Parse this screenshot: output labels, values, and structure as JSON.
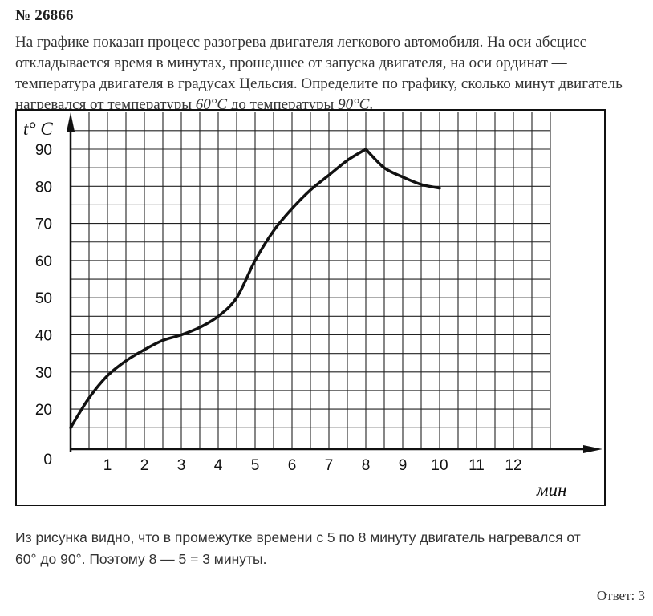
{
  "problem": {
    "number": "№ 26866",
    "text_main": "На графике показан процесс разогрева двигателя легкового автомобиля. На оси абсцисс откладывается время в минутах, прошедшее от запуска двигателя, на оси ординат — температура двигателя в градусах Цельсия. Определите по графику, сколько минут двигатель нагревался от температуры ",
    "temp_from": "60°C",
    "text_mid": " до температуры ",
    "temp_to": "90°C",
    "text_end": "."
  },
  "chart_data": {
    "type": "line",
    "xlabel": "мин",
    "ylabel": "t° C",
    "origin_label": "0",
    "x_ticks": [
      1,
      2,
      3,
      4,
      5,
      6,
      7,
      8,
      9,
      10,
      11,
      12
    ],
    "y_ticks": [
      20,
      30,
      40,
      50,
      60,
      70,
      80,
      90
    ],
    "xlim": [
      0,
      14
    ],
    "ylim": [
      11,
      96
    ],
    "grid": true,
    "series": [
      {
        "x": [
          0,
          0.5,
          1,
          1.5,
          2,
          2.5,
          3,
          3.5,
          4,
          4.5,
          5,
          5.5,
          6,
          6.5,
          7,
          7.5,
          8,
          8.5,
          9,
          9.5,
          10
        ],
        "y": [
          15,
          23,
          29,
          33,
          36,
          38.5,
          40,
          42,
          45,
          50,
          60,
          68,
          74,
          79,
          83,
          87,
          90,
          85,
          82.5,
          80.5,
          79.5
        ]
      }
    ]
  },
  "solution": {
    "line1": "Из рисунка видно, что в промежутке времени с 5 по 8 минуту двигатель нагревался от",
    "line2": "60° до 90°. Поэтому 8 — 5 = 3 минуты."
  },
  "answer": "Ответ: 3"
}
